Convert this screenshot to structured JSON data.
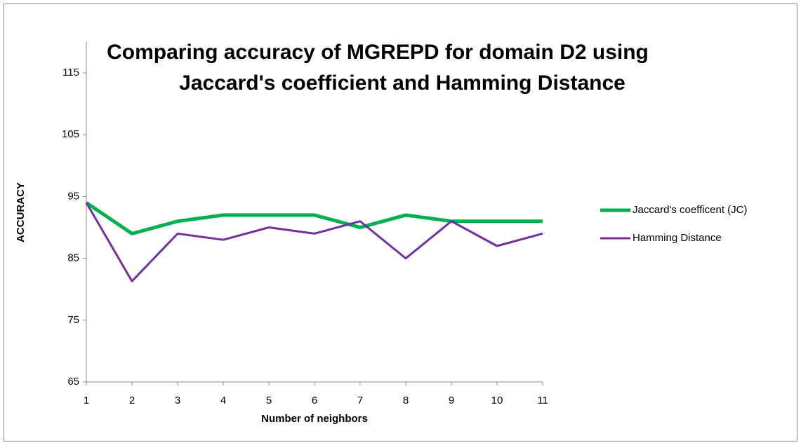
{
  "chart_data": {
    "type": "line",
    "title": "Comparing accuracy of MGREPD for domain D2 using",
    "subtitle": "Jaccard's coefficient and Hamming Distance",
    "xlabel": "Number of neighbors",
    "ylabel": "ACCURACY",
    "x": [
      1,
      2,
      3,
      4,
      5,
      6,
      7,
      8,
      9,
      10,
      11
    ],
    "series": [
      {
        "name": "Jaccard's coefficent (JC)",
        "color": "#00b050",
        "values": [
          94,
          89,
          91,
          92,
          92,
          92,
          90,
          92,
          91,
          91,
          91
        ]
      },
      {
        "name": "Hamming Distance",
        "color": "#7030a0",
        "values": [
          94,
          81.3,
          89,
          88,
          90,
          89,
          91,
          85,
          91,
          87,
          89
        ]
      }
    ],
    "xlim": [
      1,
      11
    ],
    "xticks": [
      1,
      2,
      3,
      4,
      5,
      6,
      7,
      8,
      9,
      10,
      11
    ],
    "ylim": [
      65,
      120
    ],
    "yticks": [
      65,
      75,
      85,
      95,
      105,
      115
    ],
    "grid": false,
    "legend": "right"
  }
}
